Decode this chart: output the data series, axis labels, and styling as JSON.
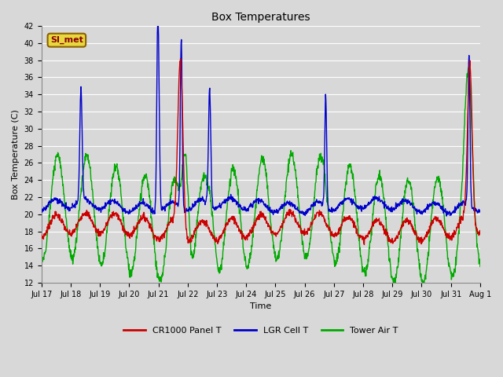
{
  "title": "Box Temperatures",
  "xlabel": "Time",
  "ylabel": "Box Temperature (C)",
  "ylim": [
    12,
    42
  ],
  "background_color": "#d8d8d8",
  "plot_bg_color": "#d8d8d8",
  "grid_color": "#ffffff",
  "line_colors": {
    "panel": "#cc0000",
    "lgr": "#0000cc",
    "tower": "#00aa00"
  },
  "line_width": 1.0,
  "legend_labels": [
    "CR1000 Panel T",
    "LGR Cell T",
    "Tower Air T"
  ],
  "watermark_text": "SI_met",
  "xtick_labels": [
    "Jul 17",
    "Jul 18",
    "Jul 19",
    "Jul 20",
    "Jul 21",
    "Jul 22",
    "Jul 23",
    "Jul 24",
    "Jul 25",
    "Jul 26",
    "Jul 27",
    "Jul 28",
    "Jul 29",
    "Jul 30",
    "Jul 31",
    "Aug 1"
  ],
  "ytick_values": [
    12,
    14,
    16,
    18,
    20,
    22,
    24,
    26,
    28,
    30,
    32,
    34,
    36,
    38,
    40,
    42
  ],
  "figsize": [
    6.4,
    4.8
  ],
  "dpi": 100
}
